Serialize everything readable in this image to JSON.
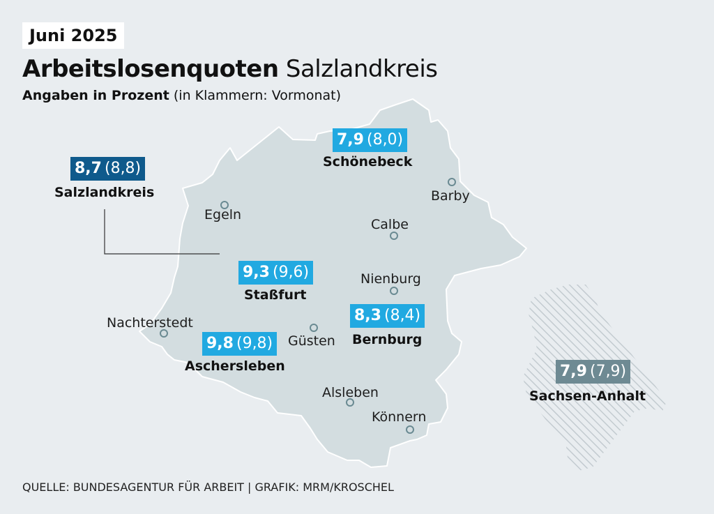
{
  "date": "Juni 2025",
  "title": {
    "bold": "Arbeitslosenquoten",
    "normal": "Salzlandkreis"
  },
  "subtitle": {
    "bold": "Angaben in Prozent",
    "normal": "(in Klammern: Vormonat)"
  },
  "colors": {
    "background": "#e9edf0",
    "district_fill": "#d3dde0",
    "highlight_blue": "#21a9e1",
    "dark_blue": "#0f5a8c",
    "grey": "#6e8a93"
  },
  "regions": [
    {
      "name": "Salzlandkreis",
      "value": "8,7",
      "previous": "(8,8)"
    },
    {
      "name": "Schönebeck",
      "value": "7,9",
      "previous": "(8,0)"
    },
    {
      "name": "Staßfurt",
      "value": "9,3",
      "previous": "(9,6)"
    },
    {
      "name": "Bernburg",
      "value": "8,3",
      "previous": "(8,4)"
    },
    {
      "name": "Aschersleben",
      "value": "9,8",
      "previous": "(9,8)"
    },
    {
      "name": "Sachsen-Anhalt",
      "value": "7,9",
      "previous": "(7,9)"
    }
  ],
  "towns": [
    "Egeln",
    "Barby",
    "Calbe",
    "Nienburg",
    "Nachterstedt",
    "Güsten",
    "Alsleben",
    "Könnern"
  ],
  "source": "QUELLE: BUNDESAGENTUR FÜR ARBEIT | GRAFIK: MRM/KROSCHEL"
}
